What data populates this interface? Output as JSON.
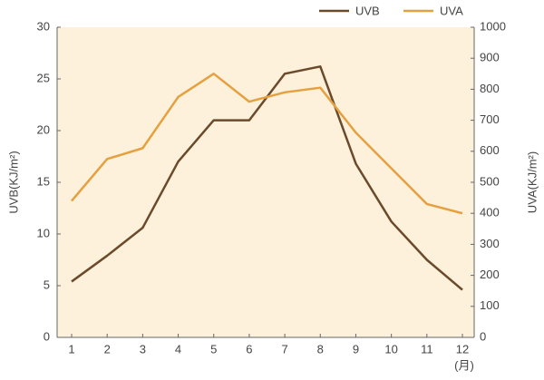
{
  "chart_data": {
    "type": "line",
    "categories": [
      "1",
      "2",
      "3",
      "4",
      "5",
      "6",
      "7",
      "8",
      "9",
      "10",
      "11",
      "12"
    ],
    "x_label": "(月)",
    "y_label": "UVB(KJ/m²)",
    "y2_label": "UVA(KJ/m²)",
    "series": [
      {
        "name": "UVB",
        "color": "#6b4a2b",
        "values": [
          5.4,
          7.9,
          10.6,
          17,
          21,
          21,
          25.5,
          26.2,
          16.8,
          11.2,
          7.5,
          4.6
        ]
      },
      {
        "name": "UVA",
        "color": "#e5a040",
        "axis": "y2",
        "values": [
          440,
          575,
          610,
          775,
          850,
          760,
          790,
          805,
          660,
          545,
          430,
          400
        ]
      }
    ],
    "ylim": [
      0,
      30
    ],
    "yticks": [
      0,
      5,
      10,
      15,
      20,
      25,
      30
    ],
    "y2lim": [
      0,
      1000
    ],
    "y2ticks": [
      0,
      100,
      200,
      300,
      400,
      500,
      600,
      700,
      800,
      900,
      1000
    ],
    "background": "#fdf1dc"
  }
}
